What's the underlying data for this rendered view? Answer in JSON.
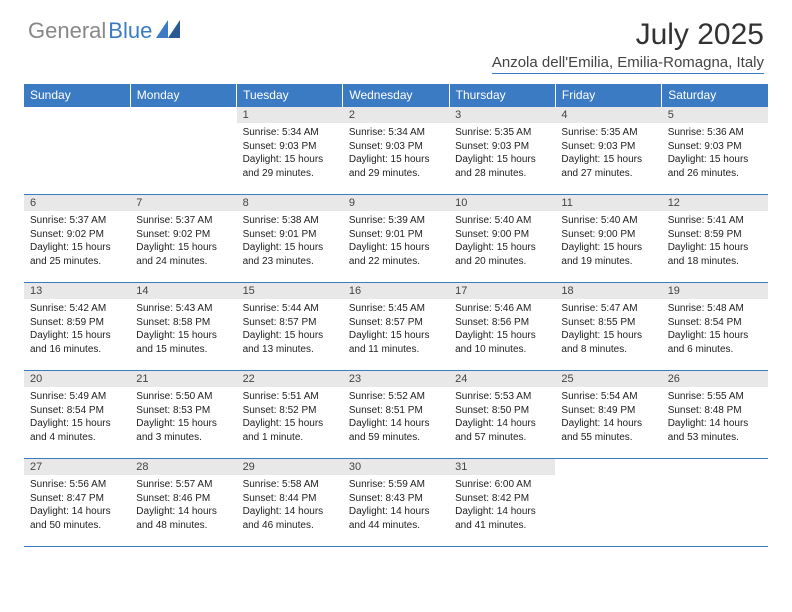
{
  "logo": {
    "text_gray": "General",
    "text_blue": "Blue"
  },
  "title": "July 2025",
  "location": "Anzola dell'Emilia, Emilia-Romagna, Italy",
  "colors": {
    "header_bg": "#3b7bc4",
    "header_text": "#ffffff",
    "daynum_bg": "#e8e8e8",
    "rule": "#3b7bc4"
  },
  "weekdays": [
    "Sunday",
    "Monday",
    "Tuesday",
    "Wednesday",
    "Thursday",
    "Friday",
    "Saturday"
  ],
  "sunrise_label": "Sunrise: ",
  "sunset_label": "Sunset: ",
  "daylight_label": "Daylight: ",
  "weeks": [
    [
      null,
      null,
      {
        "n": "1",
        "sr": "5:34 AM",
        "ss": "9:03 PM",
        "dl": "15 hours and 29 minutes."
      },
      {
        "n": "2",
        "sr": "5:34 AM",
        "ss": "9:03 PM",
        "dl": "15 hours and 29 minutes."
      },
      {
        "n": "3",
        "sr": "5:35 AM",
        "ss": "9:03 PM",
        "dl": "15 hours and 28 minutes."
      },
      {
        "n": "4",
        "sr": "5:35 AM",
        "ss": "9:03 PM",
        "dl": "15 hours and 27 minutes."
      },
      {
        "n": "5",
        "sr": "5:36 AM",
        "ss": "9:03 PM",
        "dl": "15 hours and 26 minutes."
      }
    ],
    [
      {
        "n": "6",
        "sr": "5:37 AM",
        "ss": "9:02 PM",
        "dl": "15 hours and 25 minutes."
      },
      {
        "n": "7",
        "sr": "5:37 AM",
        "ss": "9:02 PM",
        "dl": "15 hours and 24 minutes."
      },
      {
        "n": "8",
        "sr": "5:38 AM",
        "ss": "9:01 PM",
        "dl": "15 hours and 23 minutes."
      },
      {
        "n": "9",
        "sr": "5:39 AM",
        "ss": "9:01 PM",
        "dl": "15 hours and 22 minutes."
      },
      {
        "n": "10",
        "sr": "5:40 AM",
        "ss": "9:00 PM",
        "dl": "15 hours and 20 minutes."
      },
      {
        "n": "11",
        "sr": "5:40 AM",
        "ss": "9:00 PM",
        "dl": "15 hours and 19 minutes."
      },
      {
        "n": "12",
        "sr": "5:41 AM",
        "ss": "8:59 PM",
        "dl": "15 hours and 18 minutes."
      }
    ],
    [
      {
        "n": "13",
        "sr": "5:42 AM",
        "ss": "8:59 PM",
        "dl": "15 hours and 16 minutes."
      },
      {
        "n": "14",
        "sr": "5:43 AM",
        "ss": "8:58 PM",
        "dl": "15 hours and 15 minutes."
      },
      {
        "n": "15",
        "sr": "5:44 AM",
        "ss": "8:57 PM",
        "dl": "15 hours and 13 minutes."
      },
      {
        "n": "16",
        "sr": "5:45 AM",
        "ss": "8:57 PM",
        "dl": "15 hours and 11 minutes."
      },
      {
        "n": "17",
        "sr": "5:46 AM",
        "ss": "8:56 PM",
        "dl": "15 hours and 10 minutes."
      },
      {
        "n": "18",
        "sr": "5:47 AM",
        "ss": "8:55 PM",
        "dl": "15 hours and 8 minutes."
      },
      {
        "n": "19",
        "sr": "5:48 AM",
        "ss": "8:54 PM",
        "dl": "15 hours and 6 minutes."
      }
    ],
    [
      {
        "n": "20",
        "sr": "5:49 AM",
        "ss": "8:54 PM",
        "dl": "15 hours and 4 minutes."
      },
      {
        "n": "21",
        "sr": "5:50 AM",
        "ss": "8:53 PM",
        "dl": "15 hours and 3 minutes."
      },
      {
        "n": "22",
        "sr": "5:51 AM",
        "ss": "8:52 PM",
        "dl": "15 hours and 1 minute."
      },
      {
        "n": "23",
        "sr": "5:52 AM",
        "ss": "8:51 PM",
        "dl": "14 hours and 59 minutes."
      },
      {
        "n": "24",
        "sr": "5:53 AM",
        "ss": "8:50 PM",
        "dl": "14 hours and 57 minutes."
      },
      {
        "n": "25",
        "sr": "5:54 AM",
        "ss": "8:49 PM",
        "dl": "14 hours and 55 minutes."
      },
      {
        "n": "26",
        "sr": "5:55 AM",
        "ss": "8:48 PM",
        "dl": "14 hours and 53 minutes."
      }
    ],
    [
      {
        "n": "27",
        "sr": "5:56 AM",
        "ss": "8:47 PM",
        "dl": "14 hours and 50 minutes."
      },
      {
        "n": "28",
        "sr": "5:57 AM",
        "ss": "8:46 PM",
        "dl": "14 hours and 48 minutes."
      },
      {
        "n": "29",
        "sr": "5:58 AM",
        "ss": "8:44 PM",
        "dl": "14 hours and 46 minutes."
      },
      {
        "n": "30",
        "sr": "5:59 AM",
        "ss": "8:43 PM",
        "dl": "14 hours and 44 minutes."
      },
      {
        "n": "31",
        "sr": "6:00 AM",
        "ss": "8:42 PM",
        "dl": "14 hours and 41 minutes."
      },
      null,
      null
    ]
  ]
}
